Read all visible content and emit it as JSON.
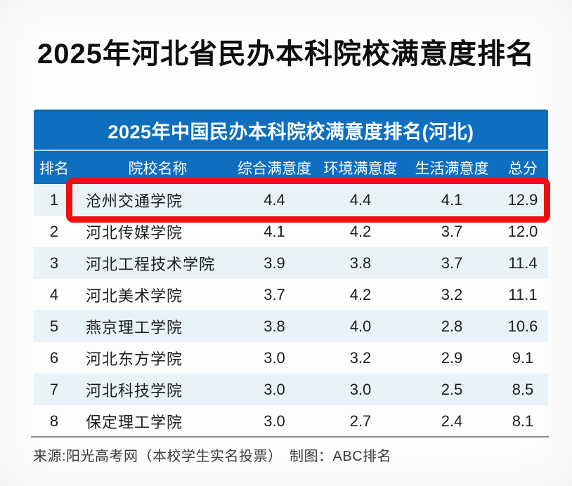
{
  "page": {
    "title": "2025年河北省民办本科院校满意度排名",
    "source_note": "来源:阳光高考网（本校学生实名投票）　制图：ABC排名"
  },
  "table": {
    "title": "2025年中国民办本科院校满意度排名(河北)",
    "columns": [
      "排名",
      "院校名称",
      "综合满意度",
      "环境满意度",
      "生活满意度",
      "总分"
    ],
    "highlighted_rank": 1,
    "rows": [
      {
        "rank": "1",
        "name": "沧州交通学院",
        "overall": "4.4",
        "environment": "4.4",
        "life": "4.1",
        "total": "12.9"
      },
      {
        "rank": "2",
        "name": "河北传媒学院",
        "overall": "4.1",
        "environment": "4.2",
        "life": "3.7",
        "total": "12.0"
      },
      {
        "rank": "3",
        "name": "河北工程技术学院",
        "overall": "3.9",
        "environment": "3.8",
        "life": "3.7",
        "total": "11.4"
      },
      {
        "rank": "4",
        "name": "河北美术学院",
        "overall": "3.7",
        "environment": "4.2",
        "life": "3.2",
        "total": "11.1"
      },
      {
        "rank": "5",
        "name": "燕京理工学院",
        "overall": "3.8",
        "environment": "4.0",
        "life": "2.8",
        "total": "10.6"
      },
      {
        "rank": "6",
        "name": "河北东方学院",
        "overall": "3.0",
        "environment": "3.2",
        "life": "2.9",
        "total": "9.1"
      },
      {
        "rank": "7",
        "name": "河北科技学院",
        "overall": "3.0",
        "environment": "3.0",
        "life": "2.5",
        "total": "8.5"
      },
      {
        "rank": "8",
        "name": "保定理工学院",
        "overall": "3.0",
        "environment": "2.7",
        "life": "2.4",
        "total": "8.1"
      }
    ]
  },
  "colors": {
    "header_blue": "#0e6fc1",
    "row_alt_blue": "#e7f3f9",
    "highlight_red": "#ec1010",
    "divider_gray": "#8e8e8e"
  },
  "chart_data": {
    "type": "table",
    "title": "2025年中国民办本科院校满意度排名(河北)",
    "columns": [
      "排名",
      "院校名称",
      "综合满意度",
      "环境满意度",
      "生活满意度",
      "总分"
    ],
    "rows": [
      [
        1,
        "沧州交通学院",
        4.4,
        4.4,
        4.1,
        12.9
      ],
      [
        2,
        "河北传媒学院",
        4.1,
        4.2,
        3.7,
        12.0
      ],
      [
        3,
        "河北工程技术学院",
        3.9,
        3.8,
        3.7,
        11.4
      ],
      [
        4,
        "河北美术学院",
        3.7,
        4.2,
        3.2,
        11.1
      ],
      [
        5,
        "燕京理工学院",
        3.8,
        4.0,
        2.8,
        10.6
      ],
      [
        6,
        "河北东方学院",
        3.0,
        3.2,
        2.9,
        9.1
      ],
      [
        7,
        "河北科技学院",
        3.0,
        3.0,
        2.5,
        8.5
      ],
      [
        8,
        "保定理工学院",
        3.0,
        2.7,
        2.4,
        8.1
      ]
    ],
    "highlighted_row": 1,
    "annotation": "第1名沧州交通学院整行被红色粗框圈出"
  }
}
